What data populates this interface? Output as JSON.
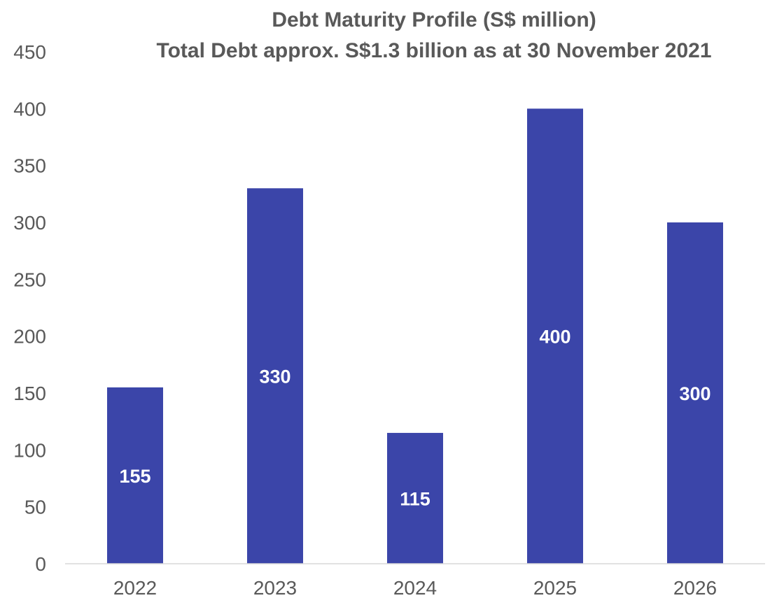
{
  "chart_data": {
    "type": "bar",
    "title": "Debt Maturity Profile (S$ million)",
    "subtitle": "Total Debt approx. S$1.3 billion as at 30 November 2021",
    "xlabel": "",
    "ylabel": "",
    "categories": [
      "2022",
      "2023",
      "2024",
      "2025",
      "2026"
    ],
    "values": [
      155,
      330,
      115,
      400,
      300
    ],
    "data_labels": [
      "155",
      "330",
      "115",
      "400",
      "300"
    ],
    "ylim": [
      0,
      450
    ],
    "y_ticks": [
      0,
      50,
      100,
      150,
      200,
      250,
      300,
      350,
      400,
      450
    ],
    "grid": false,
    "legend": "none",
    "bar_color": "#3b45a9"
  }
}
